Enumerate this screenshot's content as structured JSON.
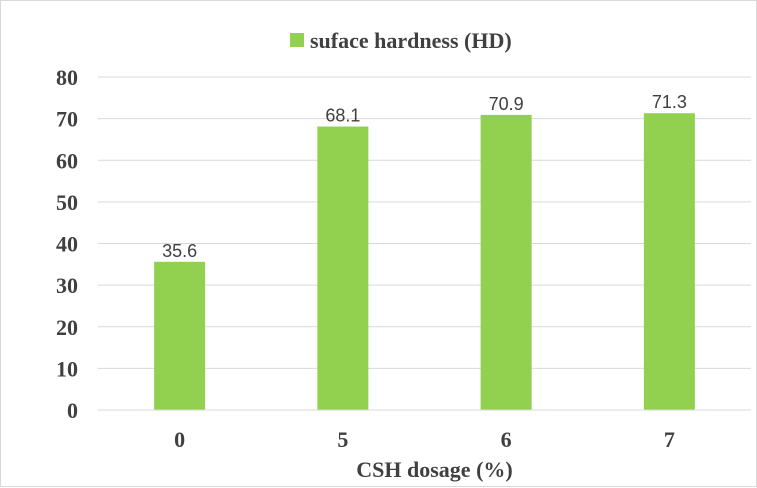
{
  "chart_data": {
    "type": "bar",
    "categories": [
      "0",
      "5",
      "6",
      "7"
    ],
    "series": [
      {
        "name": "suface hardness (HD)",
        "values": [
          35.6,
          68.1,
          70.9,
          71.3
        ]
      }
    ],
    "data_labels": [
      "35.6",
      "68.1",
      "70.9",
      "71.3"
    ],
    "xlabel": "CSH dosage (%)",
    "ylabel": "",
    "ylim": [
      0,
      80
    ],
    "yticks": [
      0,
      10,
      20,
      30,
      40,
      50,
      60,
      70,
      80
    ],
    "grid": true,
    "legend_position": "top-center",
    "colors": {
      "bar": "#92d050",
      "grid": "#d9d9d9",
      "text": "#404040"
    }
  }
}
